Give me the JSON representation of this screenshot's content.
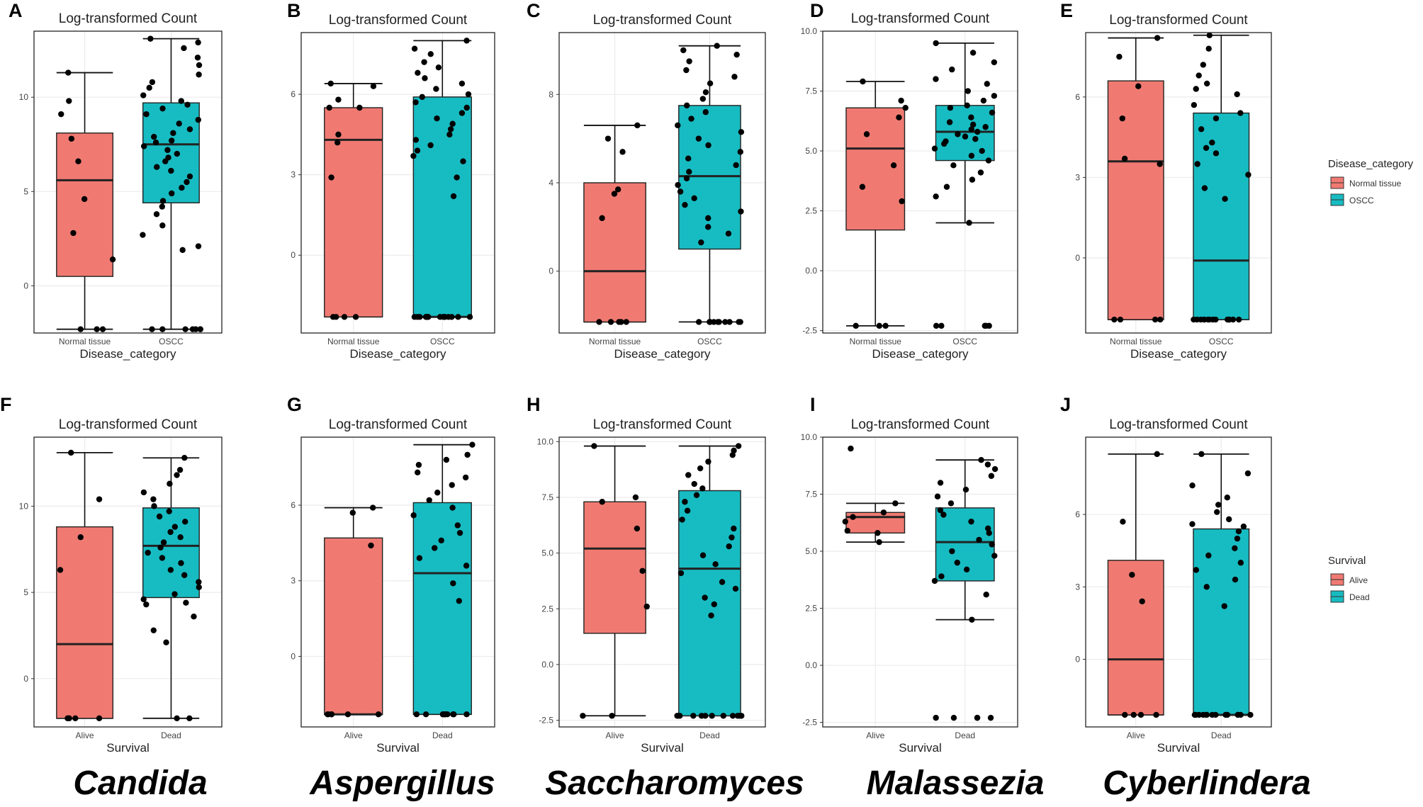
{
  "colors": {
    "first_group": "#F07A72",
    "second_group": "#17BCC2",
    "point": "#000000",
    "grid": "#EBEBEB",
    "frame": "#333333"
  },
  "genus_labels": [
    "Candida",
    "Aspergillus",
    "Saccharomyces",
    "Malassezia",
    "Cyberlindera"
  ],
  "legends": [
    {
      "title": "Disease_category",
      "items": [
        "Normal tissue",
        "OSCC"
      ]
    },
    {
      "title": "Survival",
      "items": [
        "Alive",
        "Dead"
      ]
    }
  ],
  "chart_data": [
    {
      "panel": "A",
      "type": "box",
      "title": "Log-transformed Count",
      "xlabel": "Disease_category",
      "ylim": [
        -2.5,
        13.5
      ],
      "yticks": [
        0,
        5,
        10
      ],
      "categories": [
        "Normal tissue",
        "OSCC"
      ],
      "boxes": [
        {
          "min": -2.3,
          "q1": 0.5,
          "median": 5.6,
          "q3": 8.1,
          "max": 11.3
        },
        {
          "min": -2.3,
          "q1": 4.4,
          "median": 7.5,
          "q3": 9.7,
          "max": 13.1
        }
      ],
      "points": [
        [
          11.3,
          9.8,
          9.1,
          7.8,
          6.6,
          4.6,
          2.8,
          1.4,
          -2.3,
          -2.3,
          -2.3
        ],
        [
          13.1,
          12.9,
          12.6,
          12.1,
          11.7,
          11.2,
          10.8,
          10.5,
          10.1,
          9.8,
          9.6,
          9.4,
          9.1,
          8.8,
          8.6,
          8.3,
          8.1,
          7.9,
          7.7,
          7.6,
          7.4,
          7.2,
          7.0,
          6.8,
          6.6,
          6.3,
          6.1,
          5.8,
          5.5,
          5.2,
          4.9,
          4.5,
          4.2,
          3.8,
          3.2,
          2.7,
          2.1,
          1.9,
          -2.3,
          -2.3,
          -2.3,
          -2.3,
          -2.3,
          -2.3,
          -2.3
        ]
      ]
    },
    {
      "panel": "B",
      "type": "box",
      "title": "Log-transformed Count",
      "xlabel": "Disease_category",
      "ylim": [
        -2.9,
        8.3
      ],
      "yticks": [
        0,
        3,
        6
      ],
      "categories": [
        "Normal tissue",
        "OSCC"
      ],
      "boxes": [
        {
          "min": -2.3,
          "q1": -2.3,
          "median": 4.3,
          "q3": 5.5,
          "max": 6.4
        },
        {
          "min": -2.3,
          "q1": -2.3,
          "median": -2.3,
          "q3": 5.9,
          "max": 8.0
        }
      ],
      "points": [
        [
          6.4,
          6.3,
          5.8,
          5.5,
          5.5,
          4.5,
          4.2,
          2.9,
          -2.3,
          -2.3,
          -2.3,
          -2.3
        ],
        [
          8.0,
          7.7,
          7.5,
          7.2,
          7.0,
          6.8,
          6.6,
          6.4,
          6.2,
          6.0,
          5.9,
          5.7,
          5.5,
          5.3,
          5.1,
          4.9,
          4.7,
          4.5,
          4.3,
          4.1,
          3.9,
          3.7,
          3.5,
          2.9,
          2.2,
          -2.3,
          -2.3,
          -2.3,
          -2.3,
          -2.3,
          -2.3,
          -2.3,
          -2.3,
          -2.3,
          -2.3,
          -2.3,
          -2.3,
          -2.3,
          -2.3,
          -2.3,
          -2.3
        ]
      ]
    },
    {
      "panel": "C",
      "type": "box",
      "title": "Log-transformed Count",
      "xlabel": "Disease_category",
      "ylim": [
        -2.8,
        10.8
      ],
      "yticks": [
        0,
        4,
        8
      ],
      "categories": [
        "Normal tissue",
        "OSCC"
      ],
      "boxes": [
        {
          "min": -2.3,
          "q1": -2.3,
          "median": 0.0,
          "q3": 4.0,
          "max": 6.6
        },
        {
          "min": -2.3,
          "q1": 1.0,
          "median": 4.3,
          "q3": 7.5,
          "max": 10.2
        }
      ],
      "points": [
        [
          6.6,
          6.0,
          5.4,
          3.7,
          3.5,
          2.4,
          -2.3,
          -2.3,
          -2.3,
          -2.3,
          -2.3
        ],
        [
          10.2,
          10.0,
          9.8,
          9.5,
          9.1,
          8.8,
          8.5,
          8.1,
          7.8,
          7.5,
          7.2,
          6.9,
          6.6,
          6.3,
          6.0,
          5.7,
          5.4,
          5.1,
          4.8,
          4.5,
          4.2,
          3.9,
          3.6,
          3.3,
          3.0,
          2.7,
          2.4,
          2.0,
          1.7,
          1.3,
          -2.3,
          -2.3,
          -2.3,
          -2.3,
          -2.3,
          -2.3,
          -2.3,
          -2.3,
          -2.3,
          -2.3,
          -2.3
        ]
      ]
    },
    {
      "panel": "D",
      "type": "box",
      "title": "Log-transformed Count",
      "xlabel": "Disease_category",
      "ylim": [
        -2.6,
        10.0
      ],
      "yticks": [
        -2.5,
        0.0,
        2.5,
        5.0,
        7.5,
        10.0
      ],
      "ytick_labels": [
        "-2.5",
        "0.0",
        "2.5",
        "5.0",
        "7.5",
        "10.0"
      ],
      "categories": [
        "Normal tissue",
        "OSCC"
      ],
      "boxes": [
        {
          "min": -2.3,
          "q1": 1.7,
          "median": 5.1,
          "q3": 6.8,
          "max": 7.9
        },
        {
          "min": 2.0,
          "q1": 4.6,
          "median": 5.8,
          "q3": 6.9,
          "max": 9.5
        }
      ],
      "points": [
        [
          7.9,
          7.1,
          6.8,
          6.4,
          5.7,
          4.4,
          3.5,
          2.9,
          -2.3,
          -2.3,
          -2.3
        ],
        [
          9.5,
          9.1,
          8.7,
          8.4,
          8.0,
          7.8,
          7.5,
          7.3,
          7.1,
          6.9,
          6.8,
          6.6,
          6.4,
          6.2,
          6.1,
          6.0,
          5.9,
          5.8,
          5.7,
          5.6,
          5.5,
          5.4,
          5.3,
          5.1,
          5.0,
          4.8,
          4.6,
          4.4,
          4.1,
          3.8,
          3.5,
          3.1,
          2.0,
          -2.3,
          -2.3,
          -2.3,
          -2.3,
          -2.3
        ]
      ]
    },
    {
      "panel": "E",
      "type": "box",
      "title": "Log-transformed Count",
      "xlabel": "Disease_category",
      "ylim": [
        -2.8,
        8.4
      ],
      "yticks": [
        0,
        3,
        6
      ],
      "categories": [
        "Normal tissue",
        "OSCC"
      ],
      "boxes": [
        {
          "min": -2.3,
          "q1": -2.3,
          "median": 3.6,
          "q3": 6.6,
          "max": 8.2
        },
        {
          "min": -2.3,
          "q1": -2.3,
          "median": -0.1,
          "q3": 5.4,
          "max": 8.3
        }
      ],
      "points": [
        [
          8.2,
          7.5,
          6.4,
          5.2,
          3.7,
          3.5,
          -2.3,
          -2.3,
          -2.3,
          -2.3
        ],
        [
          8.3,
          7.8,
          7.2,
          6.8,
          6.5,
          6.3,
          6.1,
          5.7,
          5.4,
          5.2,
          4.8,
          4.3,
          4.1,
          3.9,
          3.5,
          3.1,
          2.6,
          2.2,
          -2.3,
          -2.3,
          -2.3,
          -2.3,
          -2.3,
          -2.3,
          -2.3,
          -2.3,
          -2.3,
          -2.3,
          -2.3,
          -2.3,
          -2.3,
          -2.3,
          -2.3,
          -2.3
        ]
      ]
    },
    {
      "panel": "F",
      "type": "box",
      "title": "Log-transformed Count",
      "xlabel": "Survival",
      "ylim": [
        -2.8,
        14.0
      ],
      "yticks": [
        0,
        5,
        10
      ],
      "categories": [
        "Alive",
        "Dead"
      ],
      "boxes": [
        {
          "min": -2.3,
          "q1": -2.3,
          "median": 2.0,
          "q3": 8.8,
          "max": 13.1
        },
        {
          "min": -2.3,
          "q1": 4.7,
          "median": 7.7,
          "q3": 9.9,
          "max": 12.8
        }
      ],
      "points": [
        [
          13.1,
          10.4,
          8.2,
          6.3,
          -2.3,
          -2.3,
          -2.3,
          -2.3
        ],
        [
          12.8,
          12.1,
          11.8,
          11.3,
          10.8,
          10.4,
          10.0,
          9.7,
          9.4,
          9.1,
          8.8,
          8.5,
          8.2,
          7.9,
          7.6,
          7.3,
          7.0,
          6.7,
          6.3,
          6.0,
          5.6,
          5.3,
          4.9,
          4.6,
          4.4,
          4.3,
          3.6,
          2.8,
          2.1,
          -2.3,
          -2.3
        ]
      ]
    },
    {
      "panel": "G",
      "type": "box",
      "title": "Log-transformed Count",
      "xlabel": "Survival",
      "ylim": [
        -2.8,
        8.7
      ],
      "yticks": [
        0,
        3,
        6
      ],
      "categories": [
        "Alive",
        "Dead"
      ],
      "boxes": [
        {
          "min": -2.3,
          "q1": -2.3,
          "median": -2.3,
          "q3": 4.7,
          "max": 5.9
        },
        {
          "min": -2.3,
          "q1": -2.3,
          "median": 3.3,
          "q3": 6.1,
          "max": 8.4
        }
      ],
      "points": [
        [
          5.9,
          5.7,
          4.4,
          -2.3,
          -2.3,
          -2.3,
          -2.3,
          -2.3,
          -2.3
        ],
        [
          8.4,
          8.0,
          7.8,
          7.6,
          7.3,
          7.1,
          6.8,
          6.5,
          6.2,
          5.9,
          5.6,
          5.2,
          4.9,
          4.6,
          4.3,
          3.9,
          3.6,
          2.9,
          2.2,
          -2.3,
          -2.3,
          -2.3,
          -2.3,
          -2.3,
          -2.3,
          -2.3,
          -2.3,
          -2.3,
          -2.3,
          -2.3
        ]
      ]
    },
    {
      "panel": "H",
      "type": "box",
      "title": "Log-transformed Count",
      "xlabel": "Survival",
      "ylim": [
        -2.8,
        10.2
      ],
      "yticks": [
        -2.5,
        0.0,
        2.5,
        5.0,
        7.5,
        10.0
      ],
      "ytick_labels": [
        "-2.5",
        "0.0",
        "2.5",
        "5.0",
        "7.5",
        "10.0"
      ],
      "categories": [
        "Alive",
        "Dead"
      ],
      "boxes": [
        {
          "min": -2.3,
          "q1": 1.4,
          "median": 5.2,
          "q3": 7.3,
          "max": 9.8
        },
        {
          "min": -2.3,
          "q1": -2.3,
          "median": 4.3,
          "q3": 7.8,
          "max": 9.8
        }
      ],
      "points": [
        [
          9.8,
          7.5,
          7.3,
          6.1,
          4.2,
          2.6,
          -2.3,
          -2.3
        ],
        [
          9.8,
          9.6,
          9.4,
          9.1,
          8.8,
          8.5,
          8.1,
          7.9,
          7.6,
          7.3,
          6.9,
          6.5,
          6.1,
          5.7,
          5.3,
          4.9,
          4.5,
          4.1,
          3.7,
          3.4,
          3.0,
          2.7,
          2.2,
          -2.3,
          -2.3,
          -2.3,
          -2.3,
          -2.3,
          -2.3,
          -2.3,
          -2.3,
          -2.3,
          -2.3,
          -2.3,
          -2.3
        ]
      ]
    },
    {
      "panel": "I",
      "type": "box",
      "title": "Log-transformed Count",
      "xlabel": "Survival",
      "ylim": [
        -2.7,
        10.0
      ],
      "yticks": [
        -2.5,
        0.0,
        2.5,
        5.0,
        7.5,
        10.0
      ],
      "ytick_labels": [
        "-2.5",
        "0.0",
        "2.5",
        "5.0",
        "7.5",
        "10.0"
      ],
      "categories": [
        "Alive",
        "Dead"
      ],
      "boxes": [
        {
          "min": 5.4,
          "q1": 5.8,
          "median": 6.5,
          "q3": 6.7,
          "max": 7.1
        },
        {
          "min": 2.0,
          "q1": 3.7,
          "median": 5.4,
          "q3": 6.9,
          "max": 9.0
        }
      ],
      "points": [
        [
          9.5,
          7.1,
          6.7,
          6.5,
          6.3,
          5.9,
          5.8,
          5.4
        ],
        [
          9.0,
          8.8,
          8.6,
          8.3,
          8.0,
          7.7,
          7.4,
          7.1,
          6.8,
          6.6,
          6.3,
          6.0,
          5.8,
          5.5,
          5.3,
          5.0,
          4.8,
          4.5,
          4.2,
          3.9,
          3.7,
          3.1,
          2.0,
          -2.3,
          -2.3,
          -2.3,
          -2.3,
          -2.3
        ]
      ]
    },
    {
      "panel": "J",
      "type": "box",
      "title": "Log-transformed Count",
      "xlabel": "Survival",
      "ylim": [
        -2.8,
        9.2
      ],
      "yticks": [
        0,
        3,
        6
      ],
      "categories": [
        "Alive",
        "Dead"
      ],
      "boxes": [
        {
          "min": -2.3,
          "q1": -2.3,
          "median": 0.0,
          "q3": 4.1,
          "max": 8.5
        },
        {
          "min": -2.3,
          "q1": -2.3,
          "median": -2.3,
          "q3": 5.4,
          "max": 8.5
        }
      ],
      "points": [
        [
          8.5,
          5.7,
          3.5,
          2.4,
          -2.3,
          -2.3,
          -2.3,
          -2.3
        ],
        [
          8.5,
          7.7,
          7.2,
          6.7,
          6.4,
          6.1,
          5.8,
          5.6,
          5.5,
          5.3,
          5.0,
          4.6,
          4.3,
          4.0,
          3.7,
          3.3,
          3.0,
          2.2,
          -2.3,
          -2.3,
          -2.3,
          -2.3,
          -2.3,
          -2.3,
          -2.3,
          -2.3,
          -2.3,
          -2.3,
          -2.3,
          -2.3,
          -2.3,
          -2.3
        ]
      ]
    }
  ]
}
